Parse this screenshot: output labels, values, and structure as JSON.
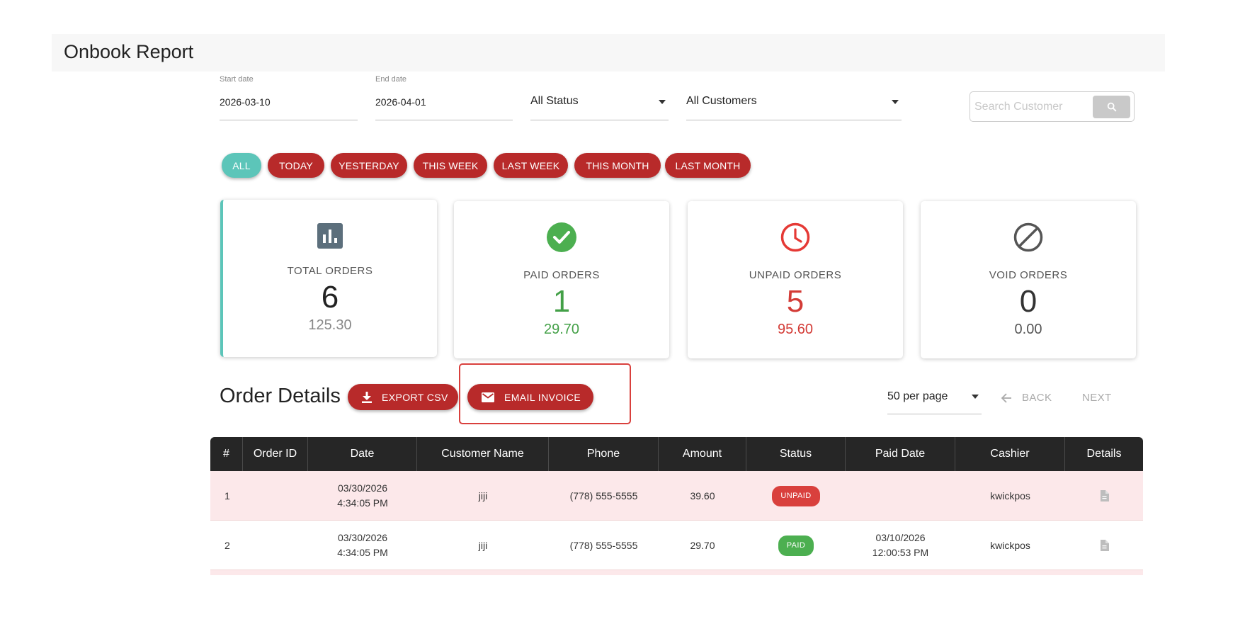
{
  "header": {
    "title": "Onbook Report"
  },
  "filters": {
    "start_date": {
      "label": "Start date",
      "value": "2026-03-10"
    },
    "end_date": {
      "label": "End date",
      "value": "2026-04-01"
    },
    "status": "All Status",
    "customers": "All Customers",
    "search": {
      "placeholder": "Search Customer"
    }
  },
  "chips": [
    "ALL",
    "TODAY",
    "YESTERDAY",
    "THIS WEEK",
    "LAST WEEK",
    "THIS MONTH",
    "LAST MONTH"
  ],
  "cards": [
    {
      "label": "TOTAL ORDERS",
      "count": "6",
      "amount": "125.30",
      "icon": "bar-chart-icon",
      "count_color": "#222222",
      "amount_color": "#888888"
    },
    {
      "label": "PAID ORDERS",
      "count": "1",
      "amount": "29.70",
      "icon": "check-circle-icon",
      "count_color": "#43a047",
      "amount_color": "#43a047"
    },
    {
      "label": "UNPAID ORDERS",
      "count": "5",
      "amount": "95.60",
      "icon": "clock-icon",
      "count_color": "#d33b36",
      "amount_color": "#d33b36"
    },
    {
      "label": "VOID ORDERS",
      "count": "0",
      "amount": "0.00",
      "icon": "block-icon",
      "count_color": "#333333",
      "amount_color": "#555555"
    }
  ],
  "order_details": {
    "title": "Order Details",
    "export_label": "EXPORT CSV",
    "email_label": "EMAIL INVOICE",
    "per_page": "50 per page",
    "back_label": "BACK",
    "next_label": "NEXT"
  },
  "table": {
    "columns": [
      "#",
      "Order ID",
      "Date",
      "Customer Name",
      "Phone",
      "Amount",
      "Status",
      "Paid Date",
      "Cashier",
      "Details"
    ],
    "rows": [
      {
        "num": "1",
        "order_id": "",
        "date": "03/30/2026",
        "time": "4:34:05 PM",
        "customer": "jiji",
        "phone": "(778) 555-5555",
        "amount": "39.60",
        "status": "UNPAID",
        "paid_date": "",
        "paid_time": "",
        "cashier": "kwickpos"
      },
      {
        "num": "2",
        "order_id": "",
        "date": "03/30/2026",
        "time": "4:34:05 PM",
        "customer": "jiji",
        "phone": "(778) 555-5555",
        "amount": "29.70",
        "status": "PAID",
        "paid_date": "03/10/2026",
        "paid_time": "12:00:53 PM",
        "cashier": "kwickpos"
      }
    ]
  },
  "colors": {
    "accent_red": "#b82a2a",
    "accent_teal": "#5cc5b9",
    "header_dark": "#262626",
    "row_pink": "#fce8ea"
  }
}
